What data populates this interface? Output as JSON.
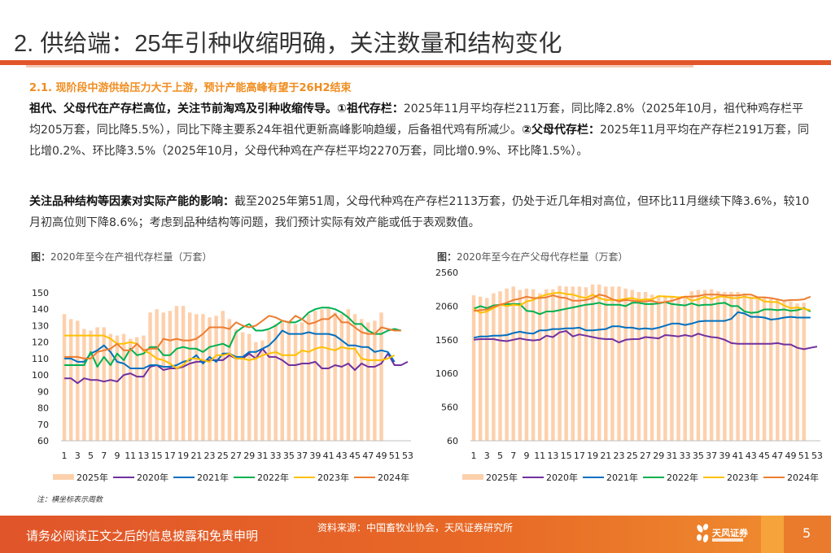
{
  "header": {
    "title": "2. 供给端：25年引种收缩明确，关注数量和结构变化",
    "subheading": "2.1. 现阶段中游供给压力大于上游，预计产能高峰有望于26H2结束"
  },
  "body": {
    "p1_bold": "祖代、父母代在产存栏高位，关注节前淘鸡及引种收缩传导。①祖代存栏：",
    "p1_text_a": "2025年11月平均存栏211万套，同比降2.8%（2025年10月，祖代种鸡存栏平均205万套，同比降5.5%），同比下降主要系24年祖代更新高峰影响趋缓，后备祖代鸡有所减少。",
    "p1_bold_b": "②父母代存栏：",
    "p1_text_b": "2025年11月平均在产存栏2191万套，同比增0.2%、环比降3.5%（2025年10月，父母代种鸡在产存栏平均2270万套，同比增0.9%、环比降1.5%）。",
    "p2_bold": "关注品种结构等因素对实际产能的影响：",
    "p2_text": "截至2025年第51周，父母代种鸡在产存栏2113万套，仍处于近几年相对高位，但环比11月继续下降3.6%，较10月初高位则下降8.6%；考虑到品种结构等问题，我们预计实际有效产能或低于表观数值。"
  },
  "charts_meta": {
    "left_title_prefix": "图：",
    "left_title": "2020年至今在产祖代存栏量（万套）",
    "right_title_prefix": "图：",
    "right_title": "2020年至今在产父母代存栏量（万套）",
    "note": "注：横坐标表示周数"
  },
  "footer": {
    "disclaimer": "请务必阅读正文之后的信息披露和免责申明",
    "source": "资料来源：中国畜牧业协会，天风证券研究所",
    "logo_text": "天风证券",
    "page_number": "5"
  },
  "colors": {
    "accent": "#e2572a",
    "subhead": "#f08c1e",
    "bar": "#fdd0ac",
    "s2020": "#7030a0",
    "s2021": "#0070c0",
    "s2022": "#00b050",
    "s2023": "#ffc000",
    "s2024": "#ed7d31"
  },
  "chart_data": [
    {
      "type": "bar+line",
      "title": "2020年至今在产祖代存栏量（万套）",
      "xlabel": "周数",
      "ylabel": "万套",
      "ylim": [
        60,
        150
      ],
      "yticks": [
        "150",
        "140",
        "130",
        "120",
        "110",
        "100",
        "90",
        "80",
        "70",
        "60"
      ],
      "xticks": [
        "1",
        "3",
        "5",
        "7",
        "9",
        "11",
        "13",
        "15",
        "17",
        "19",
        "21",
        "23",
        "25",
        "27",
        "29",
        "31",
        "33",
        "35",
        "37",
        "39",
        "41",
        "43",
        "45",
        "47",
        "49",
        "51",
        "53"
      ],
      "legend": [
        "2025年",
        "2020年",
        "2021年",
        "2022年",
        "2023年",
        "2024年"
      ],
      "legend_position": "bottom",
      "bars": {
        "name": "2025年",
        "values": [
          137,
          134,
          133,
          128,
          127,
          129,
          129,
          125,
          124,
          125,
          122,
          123,
          124,
          138,
          140,
          138,
          139,
          142,
          142,
          138,
          137,
          137,
          135,
          136,
          139,
          134,
          128,
          126,
          125,
          120,
          121,
          127,
          131,
          132,
          133,
          131,
          132,
          137,
          139,
          140,
          141,
          138,
          137,
          140,
          137,
          134,
          132,
          133,
          138
        ]
      },
      "series": [
        {
          "name": "2020年",
          "values": [
            98,
            98,
            95,
            98,
            97,
            97,
            96,
            97,
            96,
            100,
            101,
            99,
            99,
            105,
            106,
            103,
            104,
            104,
            105,
            107,
            108,
            108,
            109,
            109,
            109,
            112,
            110,
            110,
            113,
            110,
            116,
            111,
            111,
            109,
            106,
            106,
            107,
            107,
            108,
            104,
            104,
            106,
            105,
            107,
            103,
            107,
            105,
            105,
            107,
            113,
            106,
            106,
            108
          ]
        },
        {
          "name": "2021年",
          "values": [
            110,
            110,
            108,
            108,
            113,
            115,
            118,
            114,
            108,
            107,
            104,
            104,
            104,
            106,
            106,
            105,
            105,
            106,
            108,
            109,
            112,
            107,
            111,
            108,
            113,
            113,
            111,
            111,
            114,
            114,
            116,
            118,
            122,
            127,
            125,
            125,
            125,
            126,
            125,
            125,
            125,
            124,
            121,
            118,
            118,
            117,
            117,
            114,
            115,
            114,
            108
          ]
        },
        {
          "name": "2022年",
          "values": [
            106,
            106,
            106,
            106,
            114,
            105,
            111,
            106,
            113,
            109,
            116,
            112,
            113,
            117,
            117,
            112,
            112,
            116,
            117,
            116,
            116,
            114,
            117,
            118,
            119,
            117,
            126,
            129,
            131,
            127,
            127,
            128,
            130,
            133,
            132,
            132,
            134,
            138,
            140,
            141,
            141,
            140,
            138,
            135,
            131,
            131,
            127,
            125,
            125,
            127,
            128,
            127
          ]
        },
        {
          "name": "2023年",
          "values": [
            124,
            124,
            124,
            124,
            124,
            124,
            124,
            122,
            119,
            119,
            120,
            119,
            115,
            113,
            110,
            109,
            107,
            104,
            106,
            110,
            110,
            109,
            108,
            112,
            112,
            113,
            110,
            110,
            109,
            110,
            112,
            113,
            114,
            112,
            112,
            112,
            115,
            114,
            116,
            117,
            116,
            115,
            117,
            116,
            116,
            110,
            109,
            109,
            109,
            110,
            112
          ]
        },
        {
          "name": "2024年",
          "values": [
            111,
            111,
            111,
            110,
            110,
            114,
            115,
            116,
            119,
            115,
            115,
            119,
            115,
            116,
            116,
            122,
            121,
            122,
            121,
            121,
            122,
            125,
            129,
            129,
            129,
            128,
            132,
            130,
            129,
            130,
            133,
            136,
            135,
            133,
            132,
            136,
            134,
            131,
            132,
            134,
            134,
            137,
            132,
            132,
            129,
            126,
            125,
            125,
            129,
            128,
            127,
            127
          ]
        }
      ]
    },
    {
      "type": "bar+line",
      "title": "2020年至今在产父母代存栏量（万套）",
      "xlabel": "周数",
      "ylabel": "万套",
      "ylim": [
        60,
        2560
      ],
      "yticks": [
        "2560",
        "2060",
        "1560",
        "1060",
        "560",
        "60"
      ],
      "xticks": [
        "1",
        "3",
        "5",
        "7",
        "9",
        "11",
        "13",
        "15",
        "17",
        "19",
        "21",
        "23",
        "25",
        "27",
        "29",
        "31",
        "33",
        "35",
        "37",
        "39",
        "41",
        "43",
        "45",
        "47",
        "49",
        "51",
        "53"
      ],
      "legend": [
        "2025年",
        "2020年",
        "2021年",
        "2022年",
        "2023年",
        "2024年"
      ],
      "legend_position": "bottom",
      "bars": {
        "name": "2025年",
        "values": [
          2220,
          2200,
          2180,
          2250,
          2280,
          2320,
          2350,
          2300,
          2320,
          2310,
          2250,
          2310,
          2310,
          2360,
          2350,
          2350,
          2350,
          2340,
          2380,
          2380,
          2350,
          2350,
          2350,
          2320,
          2300,
          2270,
          2270,
          2230,
          2200,
          2220,
          2200,
          2180,
          2200,
          2280,
          2300,
          2300,
          2310,
          2280,
          2270,
          2270,
          2270,
          2250,
          2200,
          2200,
          2180,
          2180,
          2160,
          2150,
          2130,
          2100,
          2110
        ]
      },
      "series": [
        {
          "name": "2020年",
          "values": [
            1560,
            1570,
            1570,
            1570,
            1550,
            1540,
            1560,
            1580,
            1560,
            1550,
            1560,
            1620,
            1600,
            1670,
            1690,
            1610,
            1640,
            1620,
            1600,
            1580,
            1570,
            1570,
            1520,
            1560,
            1570,
            1570,
            1600,
            1590,
            1580,
            1630,
            1620,
            1610,
            1630,
            1610,
            1650,
            1620,
            1600,
            1590,
            1560,
            1510,
            1500,
            1500,
            1500,
            1500,
            1500,
            1500,
            1510,
            1490,
            1490,
            1440,
            1420,
            1440,
            1460
          ]
        },
        {
          "name": "2021年",
          "values": [
            1590,
            1610,
            1610,
            1620,
            1620,
            1630,
            1660,
            1680,
            1660,
            1650,
            1700,
            1700,
            1720,
            1720,
            1730,
            1730,
            1740,
            1700,
            1700,
            1710,
            1720,
            1760,
            1760,
            1740,
            1740,
            1720,
            1730,
            1720,
            1740,
            1770,
            1800,
            1800,
            1780,
            1800,
            1830,
            1840,
            1840,
            1840,
            1840,
            1870,
            1970,
            1950,
            1900,
            1900,
            1890,
            1860,
            1870,
            1890,
            1900,
            1890,
            1890,
            1890
          ]
        },
        {
          "name": "2022年",
          "values": [
            2020,
            2060,
            2030,
            2070,
            2080,
            2090,
            2090,
            2090,
            1990,
            1980,
            1940,
            1980,
            1980,
            2000,
            2020,
            2040,
            2060,
            2080,
            2090,
            2110,
            2080,
            2080,
            2080,
            2060,
            2110,
            2110,
            2090,
            2090,
            2100,
            2120,
            2090,
            2080,
            2070,
            2100,
            2070,
            2080,
            2080,
            2100,
            2110,
            2060,
            2060,
            1980,
            1960,
            1970,
            2010,
            2010,
            2000,
            2010,
            1990,
            2000,
            2030,
            1980
          ]
        },
        {
          "name": "2023年",
          "values": [
            2020,
            1960,
            1980,
            2030,
            2080,
            2060,
            2080,
            2070,
            2130,
            2150,
            2200,
            2230,
            2250,
            2260,
            2240,
            2230,
            2200,
            2180,
            2230,
            2180,
            2150,
            2150,
            2150,
            2170,
            2180,
            2150,
            2160,
            2160,
            2210,
            2200,
            2200,
            2190,
            2200,
            2140,
            2160,
            2200,
            2160,
            2200,
            2200,
            2180,
            2180,
            2200,
            2180,
            2180,
            2130,
            2120,
            2120,
            2070,
            2030,
            2040,
            2020,
            2000
          ]
        },
        {
          "name": "2024年",
          "values": [
            1990,
            2000,
            2010,
            2050,
            2080,
            2110,
            2150,
            2170,
            2200,
            2180,
            2180,
            2190,
            2220,
            2190,
            2180,
            2140,
            2140,
            2150,
            2180,
            2230,
            2210,
            2160,
            2130,
            2150,
            2140,
            2130,
            2130,
            2140,
            2110,
            2120,
            2140,
            2170,
            2200,
            2200,
            2210,
            2230,
            2230,
            2230,
            2220,
            2220,
            2220,
            2230,
            2230,
            2190,
            2190,
            2180,
            2160,
            2140,
            2150,
            2150,
            2160,
            2200
          ]
        }
      ]
    }
  ]
}
